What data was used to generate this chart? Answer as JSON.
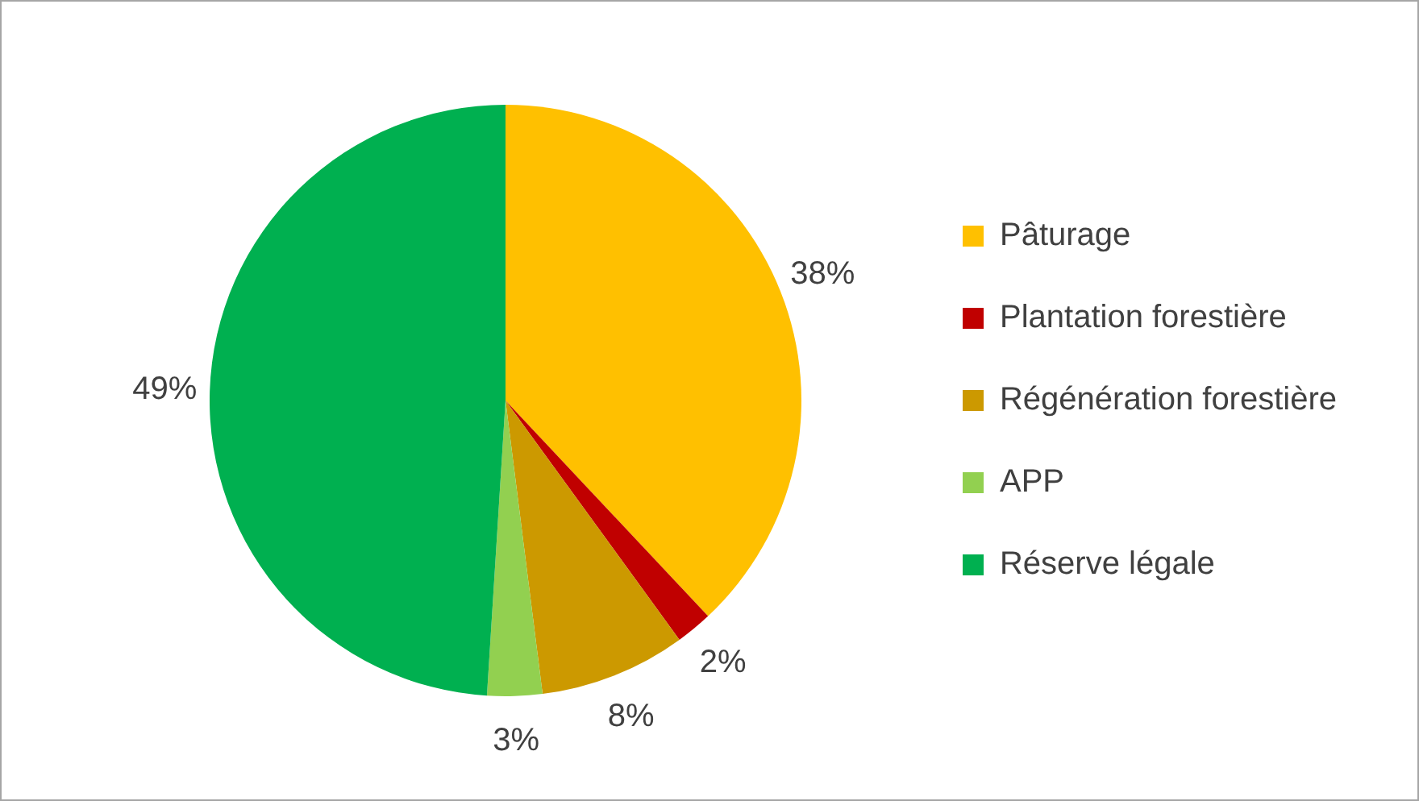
{
  "chart_data": {
    "type": "pie",
    "categories": [
      "Pâturage",
      "Plantation forestière",
      "Régénération forestière",
      "APP",
      "Réserve légale"
    ],
    "values": [
      38,
      2,
      8,
      3,
      49
    ],
    "value_labels": [
      "38%",
      "2%",
      "8%",
      "3%",
      "49%"
    ],
    "colors": [
      "#ffc000",
      "#c00000",
      "#cc9900",
      "#92d050",
      "#00b050"
    ],
    "legend": "right"
  }
}
